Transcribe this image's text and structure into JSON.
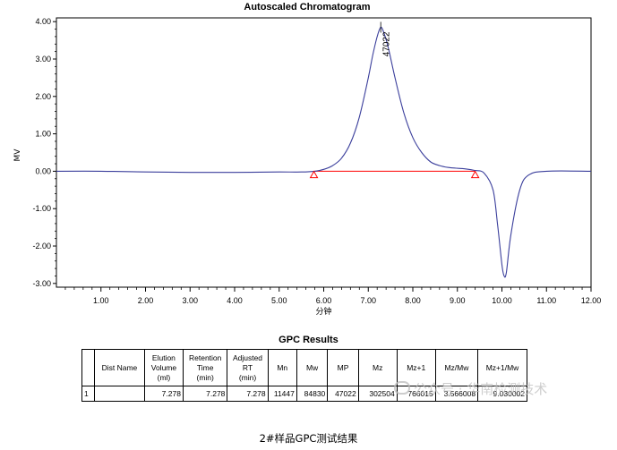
{
  "chart_data": {
    "type": "line",
    "title": "Autoscaled Chromatogram",
    "xlabel": "分钟",
    "ylabel": "MV",
    "xlim": [
      0,
      12.0
    ],
    "ylim": [
      -3.1,
      4.1
    ],
    "xticks": [
      "1.00",
      "2.00",
      "3.00",
      "4.00",
      "5.00",
      "6.00",
      "7.00",
      "8.00",
      "9.00",
      "10.00",
      "11.00",
      "12.00"
    ],
    "yticks": [
      "4.00",
      "3.00",
      "2.00",
      "1.00",
      "0.00",
      "-1.00",
      "-2.00",
      "-3.00"
    ],
    "grid": false,
    "series": [
      {
        "color": "#3b3f9c",
        "x": [
          0,
          1,
          2,
          3,
          4,
          5,
          5.5,
          5.8,
          6.0,
          6.2,
          6.4,
          6.6,
          6.8,
          7.0,
          7.1,
          7.2,
          7.28,
          7.35,
          7.45,
          7.6,
          7.8,
          8.0,
          8.2,
          8.4,
          8.6,
          8.8,
          9.0,
          9.2,
          9.4,
          9.6,
          9.8,
          9.9,
          10.0,
          10.05,
          10.1,
          10.2,
          10.4,
          10.6,
          11.0,
          12.0
        ],
        "y": [
          0.0,
          0.0,
          -0.02,
          -0.03,
          -0.03,
          -0.02,
          -0.02,
          0.0,
          0.05,
          0.15,
          0.35,
          0.75,
          1.45,
          2.5,
          3.1,
          3.6,
          3.85,
          3.7,
          3.3,
          2.5,
          1.55,
          0.9,
          0.5,
          0.25,
          0.15,
          0.1,
          0.08,
          0.06,
          0.02,
          -0.05,
          -0.5,
          -1.4,
          -2.5,
          -2.8,
          -2.7,
          -1.7,
          -0.5,
          -0.1,
          0.0,
          0.0
        ]
      }
    ],
    "baseline": {
      "color": "#ff0000",
      "x": [
        5.78,
        9.4
      ],
      "y": [
        0.0,
        0.0
      ]
    },
    "markers": [
      {
        "x": 5.78,
        "y": -0.1
      },
      {
        "x": 9.4,
        "y": -0.1
      }
    ],
    "peak_annotation": {
      "x": 7.28,
      "y": 3.85,
      "label": "47022"
    }
  },
  "results": {
    "title": "GPC Results",
    "headers": [
      {
        "lines": [
          ""
        ]
      },
      {
        "lines": [
          "Dist Name"
        ]
      },
      {
        "lines": [
          "Elution",
          "Volume",
          "(ml)"
        ]
      },
      {
        "lines": [
          "Retention",
          "Time",
          "(min)"
        ]
      },
      {
        "lines": [
          "Adjusted",
          "RT",
          "(min)"
        ]
      },
      {
        "lines": [
          "Mn"
        ]
      },
      {
        "lines": [
          "Mw"
        ]
      },
      {
        "lines": [
          "MP"
        ]
      },
      {
        "lines": [
          "Mz"
        ]
      },
      {
        "lines": [
          "Mz+1"
        ]
      },
      {
        "lines": [
          "Mz/Mw"
        ]
      },
      {
        "lines": [
          "Mz+1/Mw"
        ]
      }
    ],
    "rows": [
      [
        "1",
        "",
        "7.278",
        "7.278",
        "7.278",
        "11447",
        "84830",
        "47022",
        "302504",
        "766015",
        "3.566008",
        "9.030002"
      ]
    ]
  },
  "caption": "2#样品GPC测试结果",
  "watermark": "公众号 · 华南检测技术"
}
